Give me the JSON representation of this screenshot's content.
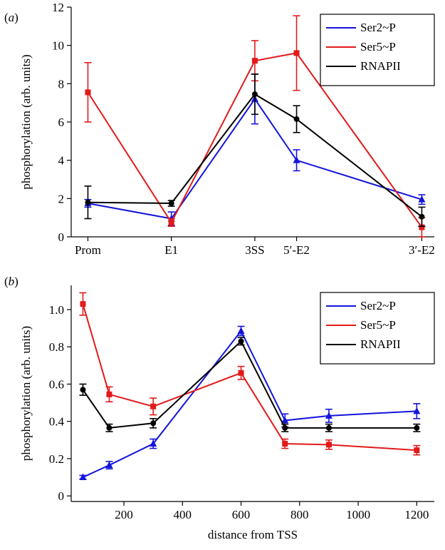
{
  "colors": {
    "ser2": "#1414dc",
    "ser5": "#e21a1a",
    "rnapii": "#000000"
  },
  "chart_data": [
    {
      "panel_label": "(a)",
      "type": "line",
      "xlabel": "",
      "ylabel": "phosphorylation (arb. units)",
      "ylim": [
        0,
        12
      ],
      "yticks": [
        0,
        2,
        4,
        6,
        8,
        10,
        12
      ],
      "x_positions": [
        0,
        1,
        2,
        2.5,
        4
      ],
      "categories": [
        "Prom",
        "E1",
        "3SS",
        "5′-E2",
        "3′-E2"
      ],
      "legend_position": "top-right",
      "series": [
        {
          "name": "Ser2~P",
          "color": "#1414dc",
          "marker": "triangle",
          "values": [
            1.75,
            0.95,
            7.2,
            4.0,
            1.95
          ],
          "errors": [
            0.2,
            0.35,
            1.3,
            0.55,
            0.25
          ]
        },
        {
          "name": "Ser5~P",
          "color": "#e21a1a",
          "marker": "square",
          "values": [
            7.55,
            0.75,
            9.2,
            9.6,
            0.5
          ],
          "errors": [
            1.55,
            0.2,
            1.05,
            1.95,
            0.5
          ]
        },
        {
          "name": "RNAPII",
          "color": "#000000",
          "marker": "circle",
          "values": [
            1.8,
            1.75,
            7.45,
            6.15,
            1.05
          ],
          "errors": [
            0.85,
            0.15,
            1.05,
            0.7,
            0.5
          ]
        }
      ]
    },
    {
      "panel_label": "(b)",
      "type": "line",
      "xlabel": "distance from TSS",
      "ylabel": "phosphorylation (arb. units)",
      "xlim": [
        20,
        1260
      ],
      "ylim": [
        -0.03,
        1.13
      ],
      "xticks": [
        200,
        400,
        600,
        800,
        1000,
        1200
      ],
      "yticks": [
        0,
        0.2,
        0.4,
        0.6,
        0.8,
        1.0
      ],
      "ytick_labels": [
        "0",
        "0.2",
        "0.4",
        "0.6",
        "0.8",
        "1.0"
      ],
      "legend_position": "top-right",
      "series": [
        {
          "name": "Ser2~P",
          "color": "#1414dc",
          "marker": "triangle",
          "x": [
            60,
            150,
            300,
            600,
            750,
            900,
            1200
          ],
          "values": [
            0.1,
            0.165,
            0.28,
            0.885,
            0.405,
            0.43,
            0.455
          ],
          "errors": [
            0.01,
            0.02,
            0.025,
            0.025,
            0.035,
            0.035,
            0.04
          ]
        },
        {
          "name": "Ser5~P",
          "color": "#e21a1a",
          "marker": "square",
          "x": [
            60,
            150,
            300,
            600,
            750,
            900,
            1200
          ],
          "values": [
            1.03,
            0.545,
            0.48,
            0.66,
            0.28,
            0.275,
            0.245
          ],
          "errors": [
            0.06,
            0.04,
            0.045,
            0.035,
            0.025,
            0.025,
            0.025
          ]
        },
        {
          "name": "RNAPII",
          "color": "#000000",
          "marker": "circle",
          "x": [
            60,
            150,
            300,
            600,
            750,
            900,
            1200
          ],
          "values": [
            0.57,
            0.365,
            0.39,
            0.83,
            0.365,
            0.365,
            0.365
          ],
          "errors": [
            0.03,
            0.02,
            0.025,
            0.02,
            0.02,
            0.02,
            0.02
          ]
        }
      ]
    }
  ]
}
